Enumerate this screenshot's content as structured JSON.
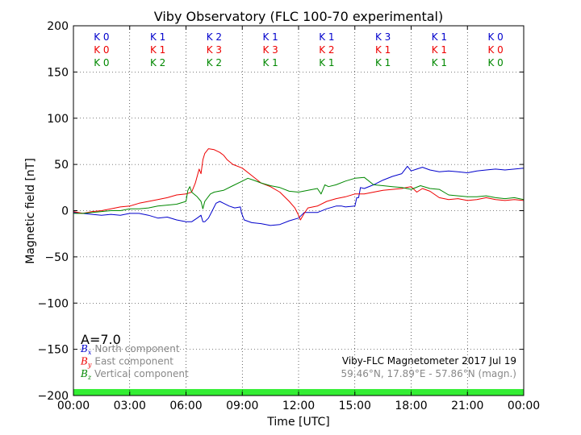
{
  "chart_data": {
    "type": "line",
    "title": "Viby Observatory (FLC 100-70 experimental)",
    "xlabel": "Time [UTC]",
    "ylabel": "Magnetic field [nT]",
    "ylim": [
      -200,
      200
    ],
    "xlim": [
      0,
      24
    ],
    "x_ticks": [
      0,
      3,
      6,
      9,
      12,
      15,
      18,
      21,
      24
    ],
    "x_tick_labels": [
      "00:00",
      "03:00",
      "06:00",
      "09:00",
      "12:00",
      "15:00",
      "18:00",
      "21:00",
      "00:00"
    ],
    "y_ticks": [
      -200,
      -150,
      -100,
      -50,
      0,
      50,
      100,
      150,
      200
    ],
    "y_tick_labels": [
      "−200",
      "−150",
      "−100",
      "−50",
      "0",
      "50",
      "100",
      "150",
      "200"
    ],
    "grid": true,
    "k_index": {
      "interval_centers": [
        1.5,
        4.5,
        7.5,
        10.5,
        13.5,
        16.5,
        19.5,
        22.5
      ],
      "rows": [
        {
          "color": "#0000cc",
          "labels": [
            "K 0",
            "K 1",
            "K 2",
            "K 1",
            "K 1",
            "K 3",
            "K 1",
            "K 0"
          ]
        },
        {
          "color": "#ee0000",
          "labels": [
            "K 0",
            "K 1",
            "K 3",
            "K 3",
            "K 2",
            "K 1",
            "K 1",
            "K 0"
          ]
        },
        {
          "color": "#008800",
          "labels": [
            "K 0",
            "K 2",
            "K 2",
            "K 1",
            "K 1",
            "K 1",
            "K 1",
            "K 0"
          ]
        }
      ]
    },
    "a_index": "A=7.0",
    "legend_placement": "lower-left",
    "legend": [
      {
        "symbol": "B",
        "subscript": "x",
        "text": "North component",
        "color": "#0000cc"
      },
      {
        "symbol": "B",
        "subscript": "y",
        "text": "East component",
        "color": "#ee0000"
      },
      {
        "symbol": "B",
        "subscript": "z",
        "text": "Vertical component",
        "color": "#008800"
      }
    ],
    "info_line1": "Viby-FLC Magnetometer 2017 Jul 19",
    "info_line2": "59.46°N, 17.89°E - 57.86°N (magn.)",
    "quality_bar": {
      "color": "#33ee33",
      "from": -200,
      "to": -193
    },
    "series": [
      {
        "name": "North component",
        "color": "#0000cc",
        "points": [
          [
            0,
            -2
          ],
          [
            0.5,
            -3
          ],
          [
            1,
            -4
          ],
          [
            1.5,
            -5
          ],
          [
            2,
            -4
          ],
          [
            2.5,
            -5
          ],
          [
            3,
            -3
          ],
          [
            3.5,
            -3
          ],
          [
            4,
            -5
          ],
          [
            4.5,
            -8
          ],
          [
            5,
            -7
          ],
          [
            5.5,
            -10
          ],
          [
            6,
            -12
          ],
          [
            6.3,
            -12
          ],
          [
            6.6,
            -8
          ],
          [
            6.8,
            -5
          ],
          [
            6.9,
            -12
          ],
          [
            7,
            -12
          ],
          [
            7.2,
            -8
          ],
          [
            7.4,
            0
          ],
          [
            7.6,
            8
          ],
          [
            7.8,
            10
          ],
          [
            8,
            8
          ],
          [
            8.3,
            5
          ],
          [
            8.6,
            3
          ],
          [
            8.9,
            4
          ],
          [
            8.95,
            -2
          ],
          [
            9.1,
            -10
          ],
          [
            9.5,
            -13
          ],
          [
            10,
            -14
          ],
          [
            10.5,
            -16
          ],
          [
            11,
            -15
          ],
          [
            11.5,
            -11
          ],
          [
            12,
            -8
          ],
          [
            12.3,
            -2
          ],
          [
            12.5,
            -2
          ],
          [
            13,
            -2
          ],
          [
            13.5,
            2
          ],
          [
            14,
            5
          ],
          [
            14.3,
            5
          ],
          [
            14.5,
            4
          ],
          [
            15,
            5
          ],
          [
            15.1,
            14
          ],
          [
            15.2,
            14
          ],
          [
            15.3,
            25
          ],
          [
            15.5,
            24
          ],
          [
            16,
            28
          ],
          [
            16.5,
            33
          ],
          [
            17,
            37
          ],
          [
            17.5,
            40
          ],
          [
            17.8,
            48
          ],
          [
            18,
            43
          ],
          [
            18.3,
            45
          ],
          [
            18.6,
            47
          ],
          [
            19,
            44
          ],
          [
            19.5,
            42
          ],
          [
            20,
            43
          ],
          [
            20.5,
            42
          ],
          [
            21,
            41
          ],
          [
            21.5,
            43
          ],
          [
            22,
            44
          ],
          [
            22.5,
            45
          ],
          [
            23,
            44
          ],
          [
            23.5,
            45
          ],
          [
            24,
            46
          ]
        ]
      },
      {
        "name": "East component",
        "color": "#ee0000",
        "points": [
          [
            0,
            -1
          ],
          [
            0.5,
            -3
          ],
          [
            1,
            -1
          ],
          [
            1.5,
            0
          ],
          [
            2,
            2
          ],
          [
            2.5,
            4
          ],
          [
            3,
            5
          ],
          [
            3.5,
            8
          ],
          [
            4,
            10
          ],
          [
            4.5,
            12
          ],
          [
            5,
            14
          ],
          [
            5.5,
            17
          ],
          [
            6,
            18
          ],
          [
            6.3,
            20
          ],
          [
            6.5,
            30
          ],
          [
            6.7,
            45
          ],
          [
            6.8,
            40
          ],
          [
            6.9,
            55
          ],
          [
            7,
            62
          ],
          [
            7.2,
            67
          ],
          [
            7.5,
            66
          ],
          [
            7.8,
            63
          ],
          [
            8,
            60
          ],
          [
            8.2,
            55
          ],
          [
            8.5,
            50
          ],
          [
            9,
            46
          ],
          [
            9.5,
            38
          ],
          [
            10,
            30
          ],
          [
            10.5,
            26
          ],
          [
            11,
            20
          ],
          [
            11.5,
            10
          ],
          [
            11.8,
            3
          ],
          [
            12,
            -5
          ],
          [
            12.1,
            -10
          ],
          [
            12.3,
            -3
          ],
          [
            12.5,
            3
          ],
          [
            13,
            5
          ],
          [
            13.5,
            10
          ],
          [
            14,
            13
          ],
          [
            14.5,
            15
          ],
          [
            15,
            18
          ],
          [
            15.5,
            18
          ],
          [
            16,
            20
          ],
          [
            16.5,
            22
          ],
          [
            17,
            23
          ],
          [
            17.5,
            24
          ],
          [
            18,
            26
          ],
          [
            18.3,
            20
          ],
          [
            18.6,
            24
          ],
          [
            19,
            21
          ],
          [
            19.5,
            14
          ],
          [
            20,
            12
          ],
          [
            20.5,
            13
          ],
          [
            21,
            11
          ],
          [
            21.5,
            12
          ],
          [
            22,
            14
          ],
          [
            22.5,
            12
          ],
          [
            23,
            11
          ],
          [
            23.5,
            12
          ],
          [
            24,
            11
          ]
        ]
      },
      {
        "name": "Vertical component",
        "color": "#008800",
        "points": [
          [
            0,
            -3
          ],
          [
            0.5,
            -3
          ],
          [
            1,
            -2
          ],
          [
            1.5,
            -1
          ],
          [
            2,
            0
          ],
          [
            2.5,
            0
          ],
          [
            3,
            2
          ],
          [
            3.5,
            2
          ],
          [
            4,
            3
          ],
          [
            4.5,
            5
          ],
          [
            5,
            6
          ],
          [
            5.5,
            7
          ],
          [
            6,
            10
          ],
          [
            6.1,
            22
          ],
          [
            6.2,
            26
          ],
          [
            6.3,
            20
          ],
          [
            6.6,
            15
          ],
          [
            6.8,
            10
          ],
          [
            6.9,
            2
          ],
          [
            7,
            10
          ],
          [
            7.3,
            18
          ],
          [
            7.5,
            20
          ],
          [
            8,
            22
          ],
          [
            8.5,
            27
          ],
          [
            9,
            32
          ],
          [
            9.3,
            35
          ],
          [
            9.6,
            33
          ],
          [
            10,
            30
          ],
          [
            10.5,
            27
          ],
          [
            11,
            25
          ],
          [
            11.5,
            21
          ],
          [
            12,
            20
          ],
          [
            12.5,
            22
          ],
          [
            13,
            24
          ],
          [
            13.2,
            18
          ],
          [
            13.4,
            28
          ],
          [
            13.6,
            26
          ],
          [
            14,
            28
          ],
          [
            14.5,
            32
          ],
          [
            15,
            35
          ],
          [
            15.5,
            36
          ],
          [
            16,
            28
          ],
          [
            16.5,
            27
          ],
          [
            17,
            26
          ],
          [
            17.5,
            25
          ],
          [
            18,
            23
          ],
          [
            18.5,
            27
          ],
          [
            19,
            24
          ],
          [
            19.5,
            23
          ],
          [
            20,
            17
          ],
          [
            20.5,
            16
          ],
          [
            21,
            15
          ],
          [
            21.5,
            15
          ],
          [
            22,
            16
          ],
          [
            22.5,
            14
          ],
          [
            23,
            13
          ],
          [
            23.5,
            14
          ],
          [
            24,
            12
          ]
        ]
      }
    ]
  }
}
